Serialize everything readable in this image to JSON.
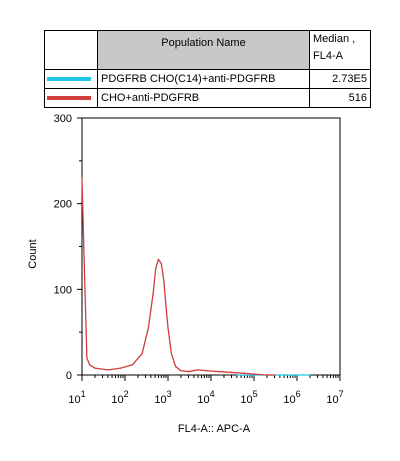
{
  "table": {
    "header_name": "Population Name",
    "header_median_line1": "Median ,",
    "header_median_line2": "FL4-A",
    "rows": [
      {
        "name": "PDGFRB CHO(C14)+anti-PDGFRB",
        "median": "2.73E5",
        "color": "#1ec8e6"
      },
      {
        "name": "CHO+anti-PDGFRB",
        "median": "516",
        "color": "#d23c3c"
      }
    ]
  },
  "chart_data": {
    "type": "line",
    "title": "",
    "xlabel": "FL4-A:: APC-A",
    "ylabel": "Count",
    "x_scale": "log",
    "xlim": [
      10,
      10000000
    ],
    "ylim": [
      0,
      300
    ],
    "x_ticks": [
      {
        "base": "10",
        "exp": "1"
      },
      {
        "base": "10",
        "exp": "2"
      },
      {
        "base": "10",
        "exp": "3"
      },
      {
        "base": "10",
        "exp": "4"
      },
      {
        "base": "10",
        "exp": "5"
      },
      {
        "base": "10",
        "exp": "6"
      },
      {
        "base": "10",
        "exp": "7"
      }
    ],
    "y_ticks": [
      "0",
      "100",
      "200",
      "300"
    ],
    "grid": false,
    "series": [
      {
        "name": "PDGFRB CHO(C14)+anti-PDGFRB",
        "color": "#1ec8e6",
        "x": [
          40000,
          100000,
          150000,
          200000,
          250000,
          300000,
          380000,
          500000,
          600000,
          800000,
          1000000,
          1200000,
          1500000,
          2000000
        ],
        "y": [
          0,
          0,
          0,
          0,
          0,
          0,
          0,
          0,
          0,
          0,
          0,
          0,
          0,
          0
        ]
      },
      {
        "name": "CHO+anti-PDGFRB",
        "color": "#d23c3c",
        "x": [
          10,
          11,
          13,
          15,
          20,
          40,
          80,
          150,
          250,
          350,
          450,
          520,
          600,
          700,
          800,
          900,
          1000,
          1200,
          1500,
          2000,
          3000,
          5000,
          8000,
          15000,
          30000,
          60000,
          100000,
          200000,
          300000
        ],
        "y": [
          230,
          150,
          20,
          12,
          8,
          6,
          8,
          12,
          25,
          55,
          95,
          125,
          135,
          130,
          110,
          80,
          55,
          25,
          10,
          5,
          4,
          6,
          5,
          4,
          3,
          2,
          1,
          0,
          0
        ]
      }
    ]
  }
}
